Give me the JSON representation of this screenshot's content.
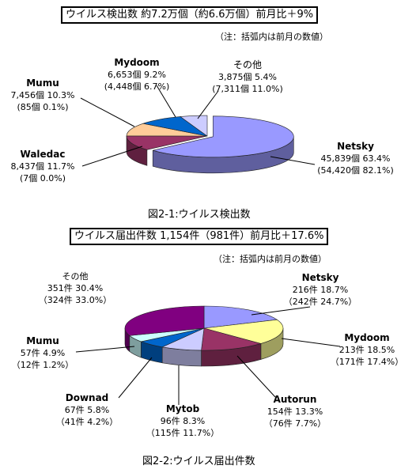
{
  "charts": [
    {
      "title": "ウイルス検出数  約7.2万個（約6.6万個）前月比＋9%",
      "note": "（注：括弧内は前月の数値）",
      "caption": "図2-1:ウイルス検出数",
      "labels": [
        {
          "name": "Netsky",
          "line1": "45,839個  63.4%",
          "line2": "(54,420個  82.1%)"
        },
        {
          "name": "Waledac",
          "line1": "8,437個  11.7%",
          "line2": "(7個  0.0%)"
        },
        {
          "name": "Mumu",
          "line1": "7,456個  10.3%",
          "line2": "(85個  0.1%)"
        },
        {
          "name": "Mydoom",
          "line1": "6,653個  9.2%",
          "line2": "(4,448個  6.7%)"
        },
        {
          "name": "その他",
          "line1": "3,875個  5.4%",
          "line2": "(7,311個  11.0%)"
        }
      ]
    },
    {
      "title": "ウイルス届出件数  1,154件（981件）前月比＋17.6%",
      "note": "（注：括弧内は前月の数値）",
      "caption": "図2-2:ウイルス届出件数",
      "labels": [
        {
          "name": "Netsky",
          "line1": "216件  18.7%",
          "line2": "（242件  24.7%）"
        },
        {
          "name": "Mydoom",
          "line1": "213件  18.5%",
          "line2": "（171件  17.4%）"
        },
        {
          "name": "Autorun",
          "line1": "154件  13.3%",
          "line2": "（76件  7.7%）"
        },
        {
          "name": "Mytob",
          "line1": "96件  8.3%",
          "line2": "（115件  11.7%）"
        },
        {
          "name": "Downad",
          "line1": "67件  5.8%",
          "line2": "（41件  4.2%）"
        },
        {
          "name": "Mumu",
          "line1": "57件  4.9%",
          "line2": "（12件  1.2%）"
        },
        {
          "name": "その他",
          "line1": "351件  30.4%",
          "line2": "（324件  33.0%）"
        }
      ]
    }
  ],
  "chart_data": [
    {
      "type": "pie",
      "title": "ウイルス検出数  約7.2万個（約6.6万個）前月比＋9%",
      "categories": [
        "Netsky",
        "Waledac",
        "Mumu",
        "Mydoom",
        "その他"
      ],
      "values": [
        63.4,
        11.7,
        10.3,
        9.2,
        5.4
      ],
      "counts": [
        45839,
        8437,
        7456,
        6653,
        3875
      ],
      "prev_values": [
        82.1,
        0.0,
        0.1,
        6.7,
        11.0
      ],
      "prev_counts": [
        54420,
        7,
        85,
        4448,
        7311
      ],
      "colors": [
        "#9999ff",
        "#993366",
        "#ffcc99",
        "#0066cc",
        "#ccccff"
      ],
      "exploded": "Netsky",
      "style": "3d"
    },
    {
      "type": "pie",
      "title": "ウイルス届出件数  1,154件（981件）前月比＋17.6%",
      "categories": [
        "Netsky",
        "Mydoom",
        "Autorun",
        "Mytob",
        "Downad",
        "Mumu",
        "その他"
      ],
      "values": [
        18.7,
        18.5,
        13.3,
        8.3,
        5.8,
        4.9,
        30.4
      ],
      "counts": [
        216,
        213,
        154,
        96,
        67,
        57,
        351
      ],
      "prev_values": [
        24.7,
        17.4,
        7.7,
        11.7,
        4.2,
        1.2,
        33.0
      ],
      "prev_counts": [
        242,
        171,
        76,
        115,
        41,
        12,
        324
      ],
      "colors": [
        "#9999ff",
        "#ffff99",
        "#993366",
        "#ccccff",
        "#0066cc",
        "#ccffff",
        "#800080"
      ],
      "style": "3d"
    }
  ]
}
